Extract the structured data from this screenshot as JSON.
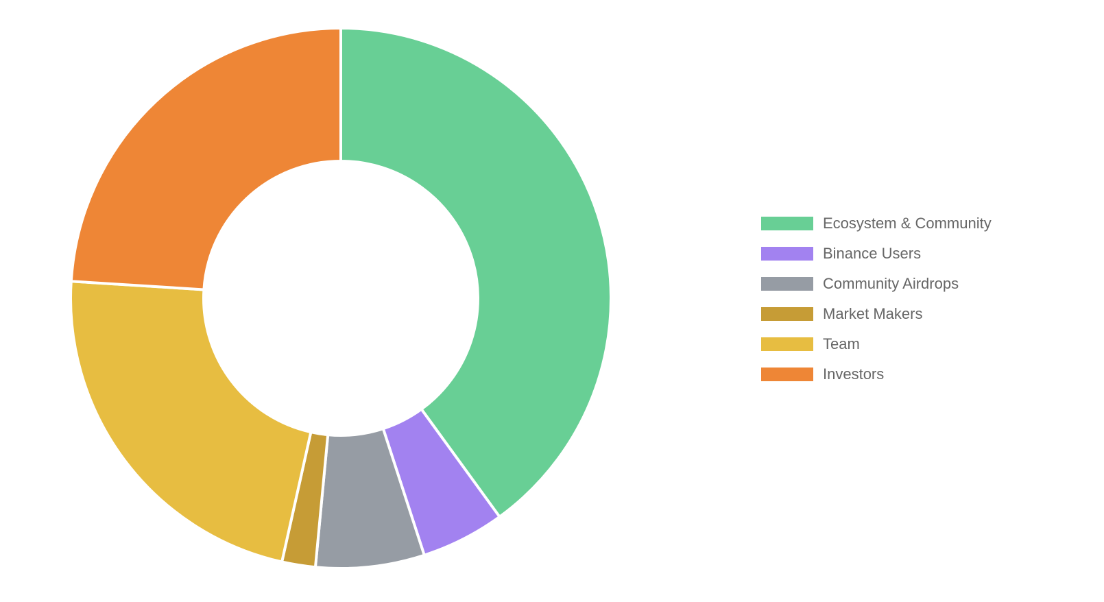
{
  "chart_data": {
    "type": "pie",
    "variant": "doughnut",
    "title": "",
    "legend_position": "right",
    "categories": [
      "Ecosystem & Community",
      "Binance Users",
      "Community Airdrops",
      "Market Makers",
      "Team",
      "Investors"
    ],
    "values": [
      40,
      5,
      6.5,
      2,
      22.5,
      24
    ],
    "colors": [
      "#68CF95",
      "#A282F0",
      "#969CA4",
      "#C69C36",
      "#E7BD41",
      "#EE8636"
    ]
  }
}
